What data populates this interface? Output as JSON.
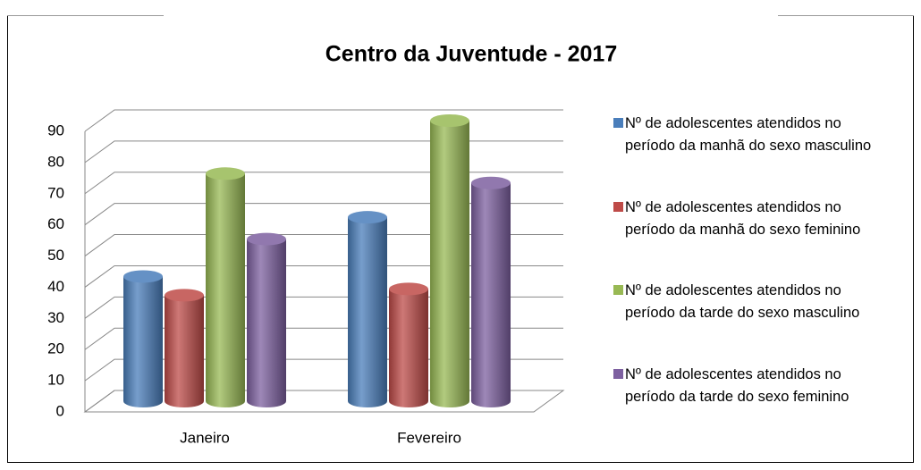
{
  "chart_data": {
    "type": "bar3d",
    "title": "Centro da Juventude - 2017",
    "categories": [
      "Janeiro",
      "Fevereiro"
    ],
    "series": [
      {
        "name": "Nº de adolescentes atendidos no período da manhã do sexo masculino",
        "color": "#4a7ebb",
        "values": [
          40,
          59
        ]
      },
      {
        "name": "Nº de adolescentes atendidos no período da manhã do sexo feminino",
        "color": "#be4b48",
        "values": [
          34,
          36
        ]
      },
      {
        "name": "Nº de adolescentes atendidos no período da tarde do sexo masculino",
        "color": "#98b954",
        "values": [
          73,
          90
        ]
      },
      {
        "name": "Nº de adolescentes atendidos no período da tarde do sexo feminino",
        "color": "#7d60a0",
        "values": [
          52,
          70
        ]
      }
    ],
    "ylim": [
      0,
      90
    ],
    "yticks": [
      0,
      10,
      20,
      30,
      40,
      50,
      60,
      70,
      80,
      90
    ],
    "grid": true,
    "legend": "right"
  }
}
